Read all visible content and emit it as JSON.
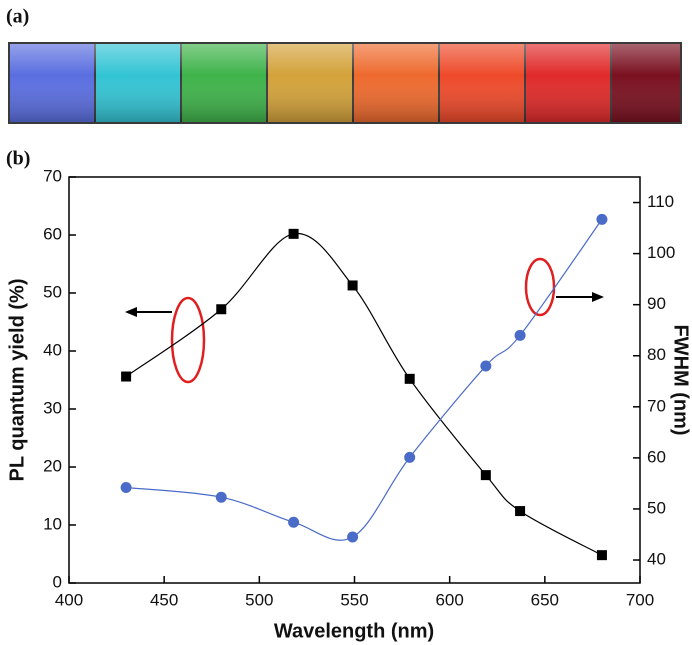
{
  "panel_a": {
    "label": "(a)"
  },
  "chart_data": {
    "type": "line",
    "panel_label": "(b)",
    "xlabel": "Wavelength (nm)",
    "ylabel": "PL quantum yield (%)",
    "y2label": "FWHM (nm)",
    "xlim": [
      400,
      700
    ],
    "xticks": [
      400,
      450,
      500,
      550,
      600,
      650,
      700
    ],
    "ylim": [
      0,
      70
    ],
    "yticks": [
      0,
      10,
      20,
      30,
      40,
      50,
      60,
      70
    ],
    "y2lim": [
      35.5,
      115
    ],
    "y2ticks": [
      40,
      50,
      60,
      70,
      80,
      90,
      100,
      110
    ],
    "series": [
      {
        "color": "#000000",
        "marker": "square",
        "axis": "y",
        "x": [
          430,
          480,
          518,
          549,
          579,
          619,
          637,
          680
        ],
        "values": [
          35.6,
          47.2,
          60.2,
          51.3,
          35.2,
          18.6,
          12.4,
          4.8
        ]
      },
      {
        "color": "#4a6bc8",
        "marker": "circle",
        "axis": "y2",
        "x": [
          430,
          480,
          518,
          549,
          579,
          619,
          637,
          680
        ],
        "values": [
          54.2,
          52.3,
          47.4,
          44.5,
          60.1,
          78,
          84,
          106.7
        ]
      }
    ]
  }
}
